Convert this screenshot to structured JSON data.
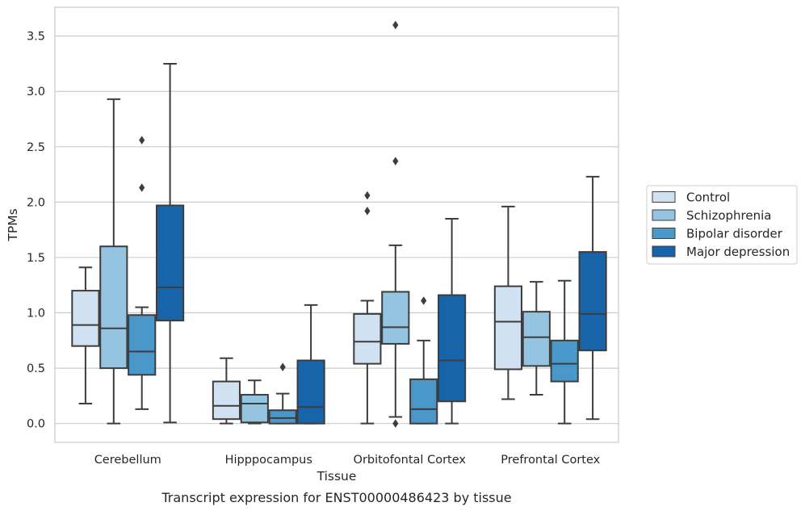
{
  "chart_data": {
    "type": "box",
    "title": "",
    "caption": "Transcript expression for ENST00000486423 by tissue",
    "xlabel": "Tissue",
    "ylabel": "TPMs",
    "ylim": [
      -0.17,
      3.76
    ],
    "yticks": [
      0.0,
      0.5,
      1.0,
      1.5,
      2.0,
      2.5,
      3.0,
      3.5
    ],
    "ytick_labels": [
      "0.0",
      "0.5",
      "1.0",
      "1.5",
      "2.0",
      "2.5",
      "3.0",
      "3.5"
    ],
    "grid": "horizontal",
    "legend_position": "right",
    "categories": [
      "Cerebellum",
      "Hipppocampus",
      "Orbitofontal Cortex",
      "Prefrontal Cortex"
    ],
    "series": [
      {
        "name": "Control",
        "color": "#d0e1f2",
        "boxes": [
          {
            "q1": 0.7,
            "median": 0.89,
            "q3": 1.2,
            "whisker_low": 0.18,
            "whisker_high": 1.41,
            "outliers": []
          },
          {
            "q1": 0.04,
            "median": 0.16,
            "q3": 0.38,
            "whisker_low": 0.0,
            "whisker_high": 0.59,
            "outliers": []
          },
          {
            "q1": 0.54,
            "median": 0.74,
            "q3": 0.99,
            "whisker_low": 0.0,
            "whisker_high": 1.11,
            "outliers": [
              1.92,
              2.06
            ]
          },
          {
            "q1": 0.49,
            "median": 0.92,
            "q3": 1.24,
            "whisker_low": 0.22,
            "whisker_high": 1.96,
            "outliers": []
          }
        ]
      },
      {
        "name": "Schizophrenia",
        "color": "#94c4df",
        "boxes": [
          {
            "q1": 0.5,
            "median": 0.86,
            "q3": 1.6,
            "whisker_low": 0.0,
            "whisker_high": 2.93,
            "outliers": []
          },
          {
            "q1": 0.01,
            "median": 0.18,
            "q3": 0.26,
            "whisker_low": 0.0,
            "whisker_high": 0.39,
            "outliers": []
          },
          {
            "q1": 0.72,
            "median": 0.87,
            "q3": 1.19,
            "whisker_low": 0.06,
            "whisker_high": 1.61,
            "outliers": [
              0.0,
              2.37,
              3.6
            ]
          },
          {
            "q1": 0.52,
            "median": 0.78,
            "q3": 1.01,
            "whisker_low": 0.26,
            "whisker_high": 1.28,
            "outliers": []
          }
        ]
      },
      {
        "name": "Bipolar disorder",
        "color": "#4a98c9",
        "boxes": [
          {
            "q1": 0.44,
            "median": 0.65,
            "q3": 0.98,
            "whisker_low": 0.13,
            "whisker_high": 1.05,
            "outliers": [
              2.13,
              2.56
            ]
          },
          {
            "q1": 0.0,
            "median": 0.05,
            "q3": 0.12,
            "whisker_low": 0.0,
            "whisker_high": 0.27,
            "outliers": [
              0.51
            ]
          },
          {
            "q1": 0.0,
            "median": 0.13,
            "q3": 0.4,
            "whisker_low": 0.0,
            "whisker_high": 0.75,
            "outliers": [
              1.11
            ]
          },
          {
            "q1": 0.38,
            "median": 0.54,
            "q3": 0.75,
            "whisker_low": 0.0,
            "whisker_high": 1.29,
            "outliers": []
          }
        ]
      },
      {
        "name": "Major depression",
        "color": "#1764ab",
        "boxes": [
          {
            "q1": 0.93,
            "median": 1.23,
            "q3": 1.97,
            "whisker_low": 0.01,
            "whisker_high": 3.25,
            "outliers": []
          },
          {
            "q1": 0.0,
            "median": 0.15,
            "q3": 0.57,
            "whisker_low": 0.0,
            "whisker_high": 1.07,
            "outliers": []
          },
          {
            "q1": 0.2,
            "median": 0.57,
            "q3": 1.16,
            "whisker_low": 0.0,
            "whisker_high": 1.85,
            "outliers": []
          },
          {
            "q1": 0.66,
            "median": 0.99,
            "q3": 1.55,
            "whisker_low": 0.04,
            "whisker_high": 2.23,
            "outliers": []
          }
        ]
      }
    ],
    "colors": {
      "box_edge": "#3d3d3d",
      "grid": "#cccccc",
      "frame": "#cccccc",
      "text": "#262626"
    }
  }
}
